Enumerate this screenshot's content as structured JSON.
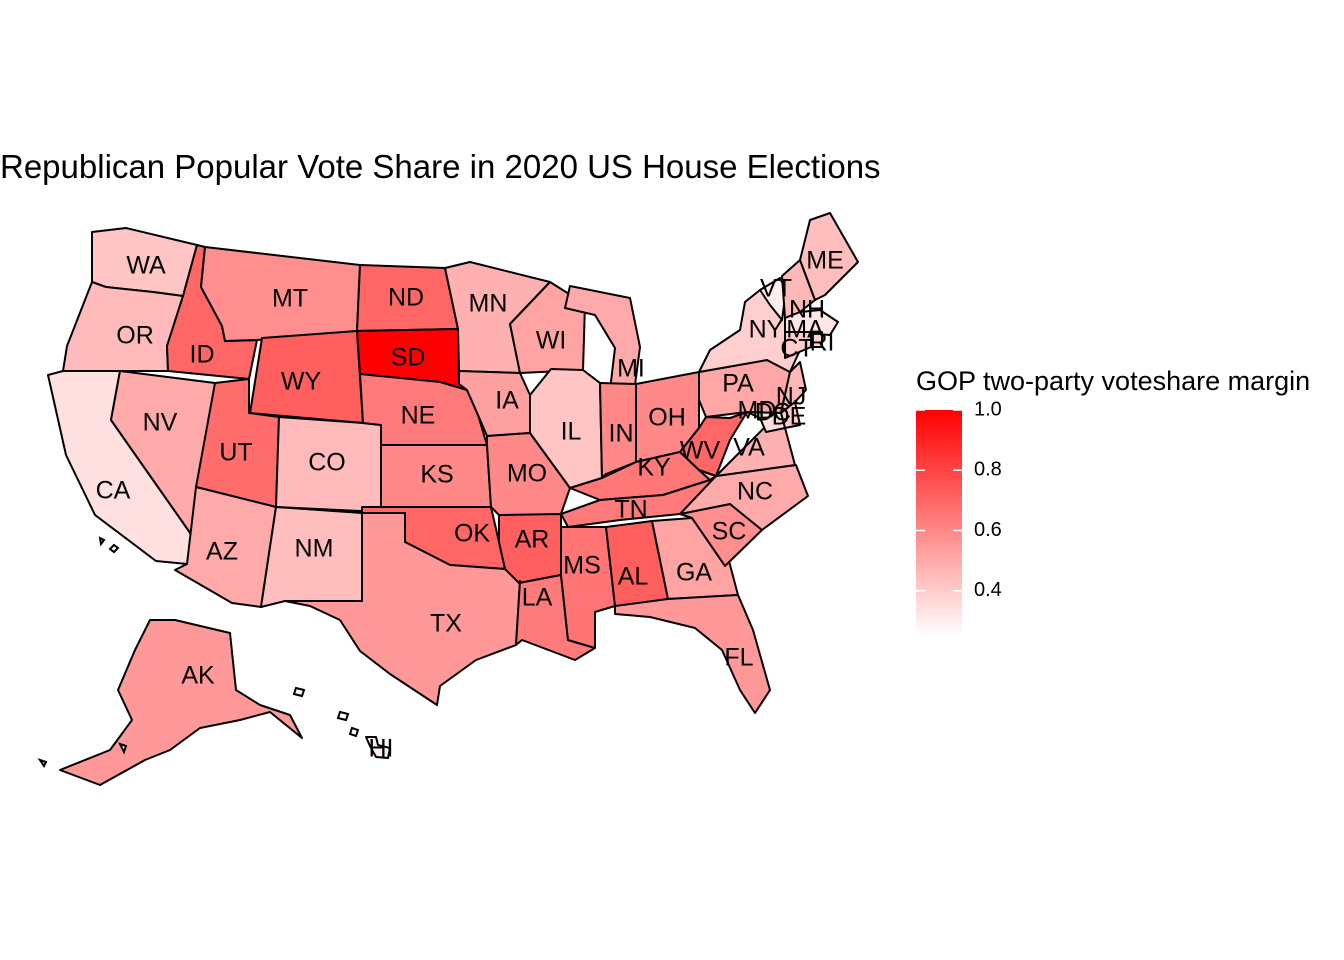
{
  "chart_data": {
    "type": "choropleth",
    "title": "Republican Popular Vote Share in 2020 US House Elections",
    "legend": {
      "title": "GOP two-party voteshare margin",
      "placement": "right",
      "ticks": [
        "1.0",
        "0.8",
        "0.6",
        "0.4"
      ],
      "tick_values": [
        1.0,
        0.8,
        0.6,
        0.4
      ],
      "range": [
        0.25,
        1.0
      ],
      "low_color": "#ffffff",
      "high_color": "#ff0000"
    },
    "states": [
      {
        "abbr": "WA",
        "value": 0.42
      },
      {
        "abbr": "OR",
        "value": 0.45
      },
      {
        "abbr": "CA",
        "value": 0.34
      },
      {
        "abbr": "ID",
        "value": 0.7
      },
      {
        "abbr": "NV",
        "value": 0.5
      },
      {
        "abbr": "MT",
        "value": 0.58
      },
      {
        "abbr": "WY",
        "value": 0.72
      },
      {
        "abbr": "UT",
        "value": 0.68
      },
      {
        "abbr": "AZ",
        "value": 0.5
      },
      {
        "abbr": "CO",
        "value": 0.45
      },
      {
        "abbr": "NM",
        "value": 0.44
      },
      {
        "abbr": "ND",
        "value": 0.7
      },
      {
        "abbr": "SD",
        "value": 1.0
      },
      {
        "abbr": "NE",
        "value": 0.64
      },
      {
        "abbr": "KS",
        "value": 0.6
      },
      {
        "abbr": "OK",
        "value": 0.7
      },
      {
        "abbr": "TX",
        "value": 0.55
      },
      {
        "abbr": "MN",
        "value": 0.48
      },
      {
        "abbr": "IA",
        "value": 0.53
      },
      {
        "abbr": "MO",
        "value": 0.6
      },
      {
        "abbr": "AR",
        "value": 0.72
      },
      {
        "abbr": "LA",
        "value": 0.64
      },
      {
        "abbr": "WI",
        "value": 0.52
      },
      {
        "abbr": "IL",
        "value": 0.42
      },
      {
        "abbr": "MI",
        "value": 0.5
      },
      {
        "abbr": "IN",
        "value": 0.6
      },
      {
        "abbr": "OH",
        "value": 0.6
      },
      {
        "abbr": "KY",
        "value": 0.65
      },
      {
        "abbr": "TN",
        "value": 0.64
      },
      {
        "abbr": "MS",
        "value": 0.66
      },
      {
        "abbr": "AL",
        "value": 0.72
      },
      {
        "abbr": "GA",
        "value": 0.52
      },
      {
        "abbr": "FL",
        "value": 0.55
      },
      {
        "abbr": "SC",
        "value": 0.58
      },
      {
        "abbr": "NC",
        "value": 0.5
      },
      {
        "abbr": "VA",
        "value": 0.48
      },
      {
        "abbr": "WV",
        "value": 0.7
      },
      {
        "abbr": "PA",
        "value": 0.51
      },
      {
        "abbr": "NY",
        "value": 0.39
      },
      {
        "abbr": "VT",
        "value": 0.3
      },
      {
        "abbr": "NH",
        "value": 0.46
      },
      {
        "abbr": "ME",
        "value": 0.44
      },
      {
        "abbr": "MA",
        "value": 0.33
      },
      {
        "abbr": "RI",
        "value": 0.38
      },
      {
        "abbr": "CT",
        "value": 0.4
      },
      {
        "abbr": "NJ",
        "value": 0.46
      },
      {
        "abbr": "DE",
        "value": 0.4
      },
      {
        "abbr": "MD",
        "value": 0.35
      },
      {
        "abbr": "DC",
        "value": 0.1
      },
      {
        "abbr": "AK",
        "value": 0.55
      },
      {
        "abbr": "HI",
        "value": 0.3
      }
    ]
  }
}
